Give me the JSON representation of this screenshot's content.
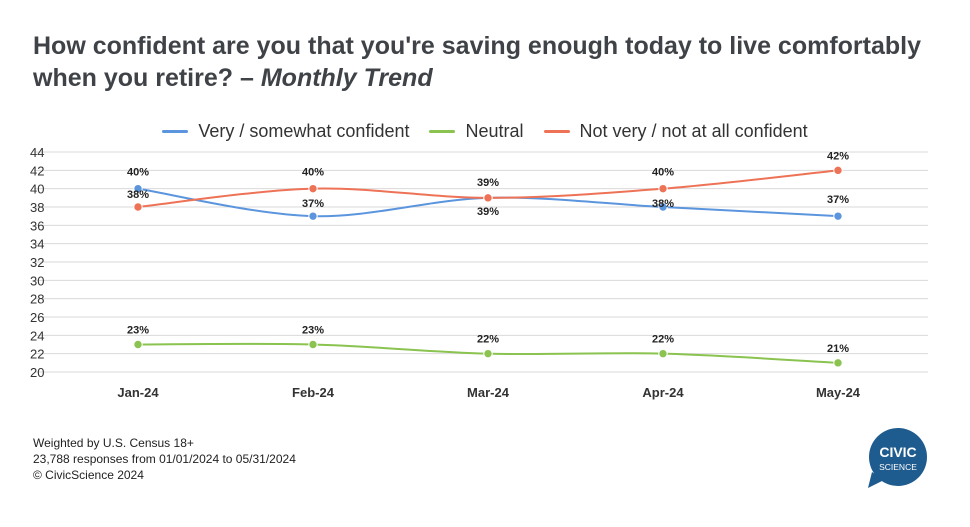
{
  "title": {
    "main": "How confident are you that you're saving enough today to live comfortably when you retire?",
    "separator": " – ",
    "sub": "Monthly Trend"
  },
  "colors": {
    "very": "#5b95dd",
    "neutral": "#8ac34f",
    "not": "#ee7256",
    "grid": "#d9d9d9"
  },
  "chart_data": {
    "type": "line",
    "categories": [
      "Jan-24",
      "Feb-24",
      "Mar-24",
      "Apr-24",
      "May-24"
    ],
    "series": [
      {
        "name": "Very / somewhat confident",
        "values": [
          40,
          37,
          39,
          38,
          37
        ],
        "labels": [
          "40%",
          "37%",
          "39%",
          "38%",
          "37%"
        ]
      },
      {
        "name": "Neutral",
        "values": [
          23,
          23,
          22,
          22,
          21
        ],
        "labels": [
          "23%",
          "23%",
          "22%",
          "22%",
          "21%"
        ]
      },
      {
        "name": "Not very / not at all confident",
        "values": [
          38,
          40,
          39,
          40,
          42
        ],
        "labels": [
          "38%",
          "40%",
          "39%",
          "40%",
          "42%"
        ]
      }
    ],
    "yticks": [
      20,
      22,
      24,
      26,
      28,
      30,
      32,
      34,
      36,
      38,
      40,
      42,
      44
    ],
    "ylim": [
      20,
      44
    ],
    "grid": true,
    "legend_position": "top-center"
  },
  "footer": {
    "line1": "Weighted by U.S. Census 18+",
    "line2": "23,788 responses from 01/01/2024 to 05/31/2024",
    "line3": "© CivicScience 2024"
  },
  "logo": {
    "line1": "CIVIC",
    "line2": "SCIENCE",
    "color": "#1e5b8e"
  }
}
